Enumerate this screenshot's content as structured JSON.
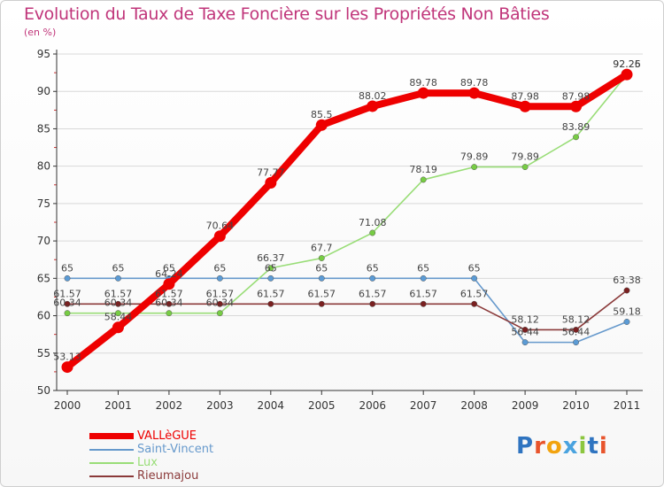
{
  "title": "Evolution du Taux de Taxe Foncière sur les Propriétés Non Bâties",
  "unit": "(en %)",
  "brand": "Proxiti",
  "colors": {
    "title": "#c0357a",
    "grid": "#d9d9d9",
    "axis": "#333333"
  },
  "chart_data": {
    "type": "line",
    "title": "Evolution du Taux de Taxe Foncière sur les Propriétés Non Bâties",
    "ylabel": "(en %)",
    "x": [
      "2000",
      "2001",
      "2002",
      "2003",
      "2004",
      "2005",
      "2006",
      "2007",
      "2008",
      "2009",
      "2010",
      "2011"
    ],
    "ylim": [
      50,
      95
    ],
    "yticks": [
      50,
      55,
      60,
      65,
      70,
      75,
      80,
      85,
      90,
      95
    ],
    "grid": "horizontal",
    "legend": "bottom-left",
    "series": [
      {
        "name": "VALLèGUE",
        "color": "#ee0000",
        "point_color": "#ee0000",
        "emphasis": true,
        "values": [
          53.13,
          58.44,
          64.24,
          70.64,
          77.77,
          85.5,
          88.02,
          89.78,
          89.78,
          87.98,
          87.98,
          92.26
        ],
        "labels": [
          "53.13",
          "58.44",
          "64.24",
          "70.64",
          "77.77",
          "85.5",
          "88.02",
          "89.78",
          "89.78",
          "87.98",
          "87.98",
          "92.26"
        ]
      },
      {
        "name": "Saint-Vincent",
        "color": "#6699cc",
        "point_color": "#5b9bd5",
        "values": [
          65,
          65,
          65,
          65,
          65,
          65,
          65,
          65,
          65,
          56.44,
          56.44,
          59.18
        ],
        "labels": [
          "65",
          "65",
          "65",
          "65",
          "65",
          "65",
          "65",
          "65",
          "65",
          "56.44",
          "56.44",
          "59.18"
        ]
      },
      {
        "name": "Lux",
        "color": "#99dd77",
        "point_color": "#77cc44",
        "values": [
          60.34,
          60.34,
          60.34,
          60.34,
          66.37,
          67.7,
          71.08,
          78.19,
          79.89,
          79.89,
          83.89,
          92.25
        ],
        "labels": [
          "60.34",
          "60.34",
          "60.34",
          "60.34",
          "66.37",
          "67.7",
          "71.08",
          "78.19",
          "79.89",
          "79.89",
          "83.89",
          "92.25"
        ]
      },
      {
        "name": "Rieumajou",
        "color": "#8b3a3a",
        "point_color": "#7a2020",
        "values": [
          61.57,
          61.57,
          61.57,
          61.57,
          61.57,
          61.57,
          61.57,
          61.57,
          61.57,
          58.12,
          58.12,
          63.38
        ],
        "labels": [
          "61.57",
          "61.57",
          "61.57",
          "61.57",
          "61.57",
          "61.57",
          "61.57",
          "61.57",
          "61.57",
          "58.12",
          "58.12",
          "63.38"
        ]
      }
    ]
  }
}
